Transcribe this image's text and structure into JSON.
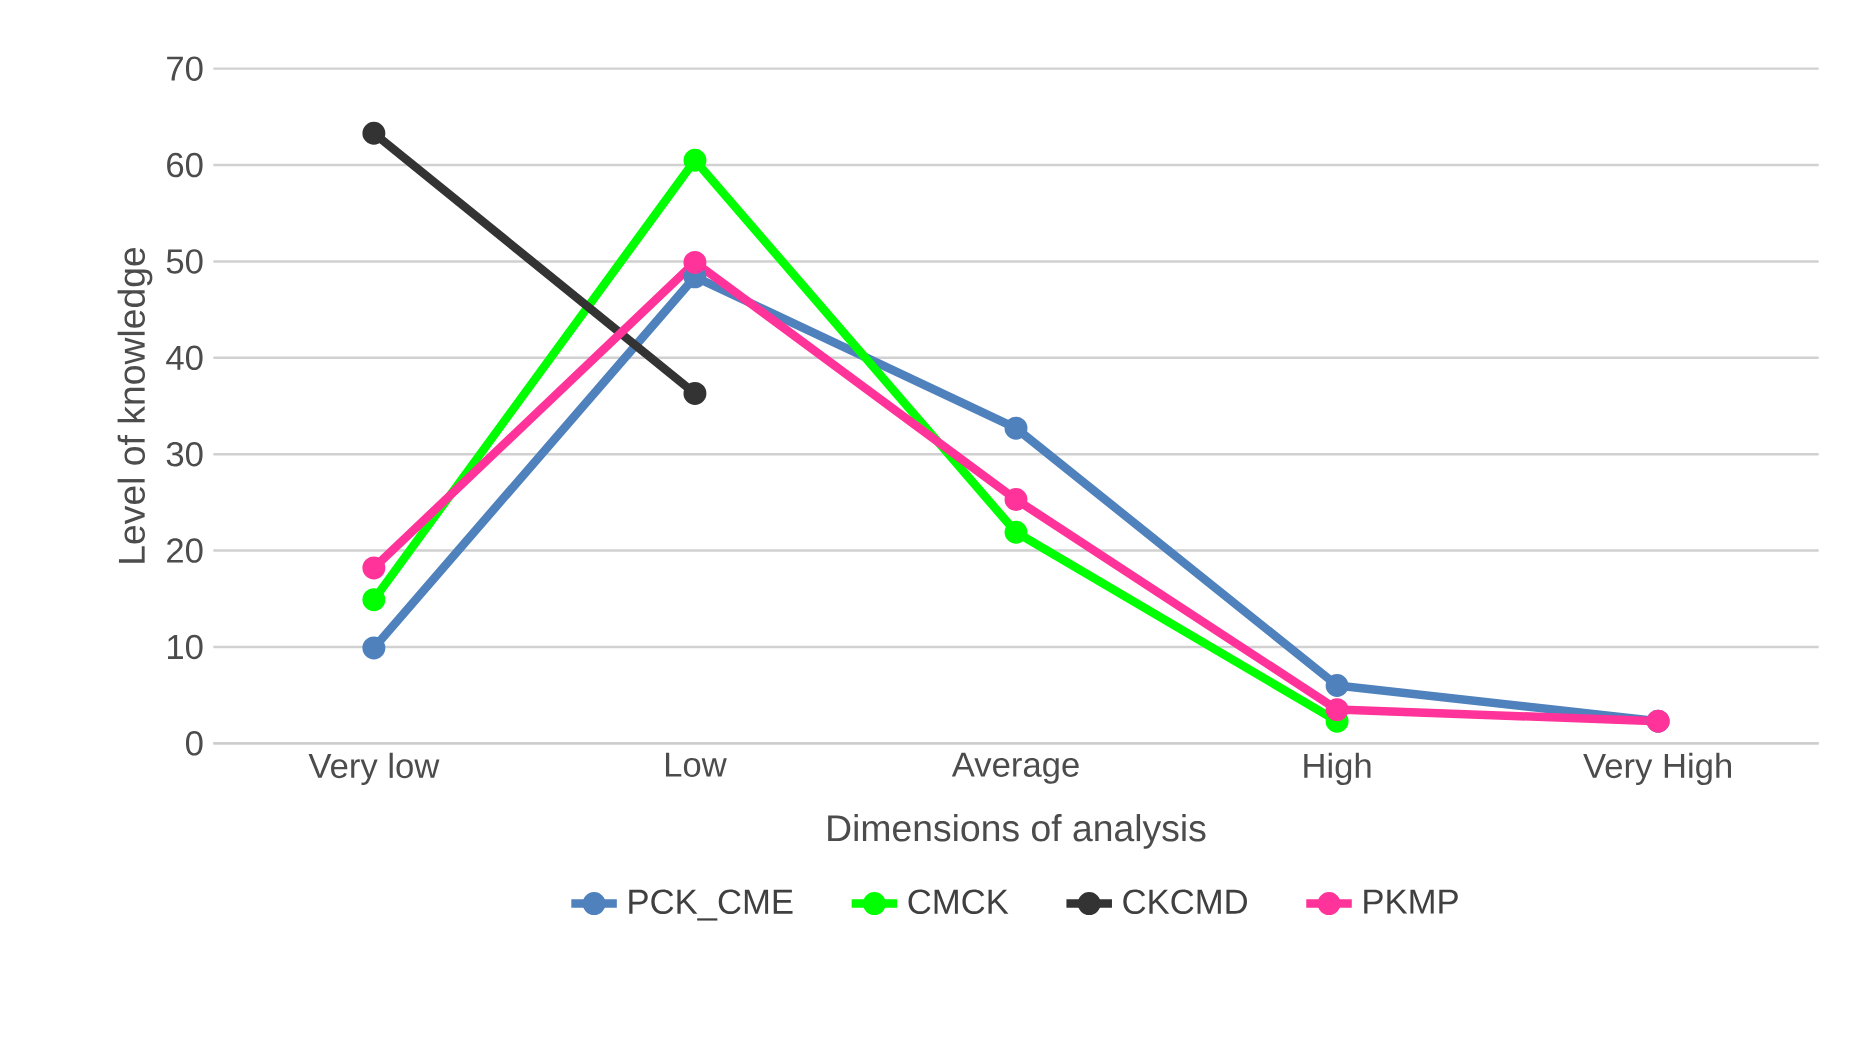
{
  "chart_data": {
    "type": "line",
    "xlabel": "Dimensions of analysis",
    "ylabel": "Level of knowledge",
    "categories": [
      "Very low",
      "Low",
      "Average",
      "High",
      "Very High"
    ],
    "series": [
      {
        "name": "PCK_CME",
        "color": "#4f81bd",
        "values": [
          9.9,
          48.4,
          32.7,
          6.0,
          2.3
        ]
      },
      {
        "name": "CMCK",
        "color": "#00ff00",
        "values": [
          14.9,
          60.5,
          21.9,
          2.3,
          null
        ]
      },
      {
        "name": "CKCMD",
        "color": "#333333",
        "values": [
          63.3,
          36.3,
          null,
          null,
          null
        ]
      },
      {
        "name": "PKMP",
        "color": "#ff3399",
        "values": [
          18.2,
          49.9,
          25.3,
          3.5,
          2.3
        ]
      }
    ],
    "ylim": [
      0,
      70
    ],
    "yticks": [
      0,
      10,
      20,
      30,
      40,
      50,
      60,
      70
    ],
    "grid": "y",
    "legend": "bottom",
    "marker": "circle",
    "line_style": "solid"
  }
}
